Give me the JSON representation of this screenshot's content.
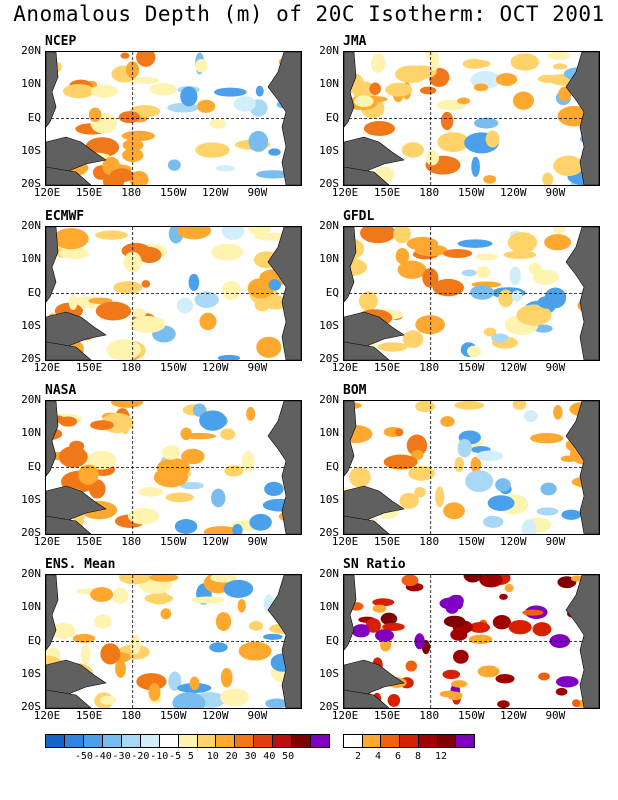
{
  "title": "Anomalous Depth (m) of 20C Isotherm: OCT 2001",
  "lat_labels": [
    "20N",
    "10N",
    "EQ",
    "10S",
    "20S"
  ],
  "lon_labels": [
    "120E",
    "150E",
    "180",
    "150W",
    "120W",
    "90W"
  ],
  "panels": [
    {
      "title": "NCEP"
    },
    {
      "title": "JMA"
    },
    {
      "title": "ECMWF"
    },
    {
      "title": "GFDL"
    },
    {
      "title": "NASA"
    },
    {
      "title": "BOM"
    },
    {
      "title": "ENS. Mean"
    },
    {
      "title": "SN Ratio"
    }
  ],
  "colorbar_depth": {
    "colors": [
      "#1565c8",
      "#2e86e0",
      "#4aa0ea",
      "#78bcf0",
      "#a8d8f6",
      "#d2eefa",
      "#ffffff",
      "#fff3b0",
      "#ffd26a",
      "#ffa830",
      "#f07818",
      "#e04010",
      "#b81010",
      "#800000",
      "#8000c0"
    ],
    "labels": [
      "-50",
      "-40",
      "-30",
      "-20",
      "-10",
      "-5",
      "5",
      "10",
      "20",
      "30",
      "40",
      "50"
    ]
  },
  "colorbar_sn": {
    "colors": [
      "#ffffff",
      "#ffa830",
      "#f06010",
      "#d82000",
      "#a00000",
      "#800000",
      "#8000c0"
    ],
    "labels": [
      "2",
      "4",
      "6",
      "8",
      "12"
    ]
  }
}
